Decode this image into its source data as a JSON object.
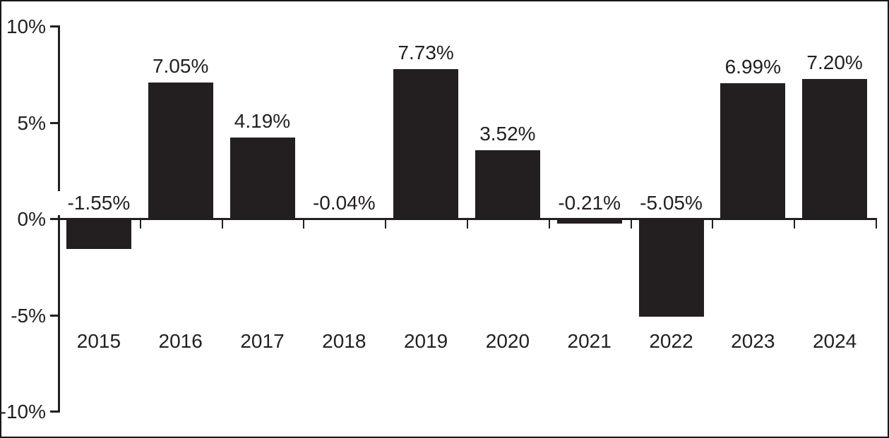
{
  "chart_data": {
    "type": "bar",
    "title": "",
    "xlabel": "",
    "ylabel": "",
    "categories": [
      "2015",
      "2016",
      "2017",
      "2018",
      "2019",
      "2020",
      "2021",
      "2022",
      "2023",
      "2024"
    ],
    "values": [
      -1.55,
      7.05,
      4.19,
      -0.04,
      7.73,
      3.52,
      -0.21,
      -5.05,
      6.99,
      7.2
    ],
    "data_labels": [
      "-1.55%",
      "7.05%",
      "4.19%",
      "-0.04%",
      "7.73%",
      "3.52%",
      "-0.21%",
      "-5.05%",
      "6.99%",
      "7.20%"
    ],
    "ylim": [
      -10,
      10
    ],
    "yticks": [
      {
        "value": 10,
        "label": "10%"
      },
      {
        "value": 5,
        "label": "5%"
      },
      {
        "value": 0,
        "label": "0%"
      },
      {
        "value": -5,
        "label": "-5%"
      },
      {
        "value": -10,
        "label": "-10%"
      }
    ],
    "grid": false,
    "legend": false,
    "colors": {
      "bar": "#231f20",
      "axis": "#231f20",
      "text": "#231f20",
      "background": "#ffffff",
      "frame_border": "#1a1718"
    }
  }
}
